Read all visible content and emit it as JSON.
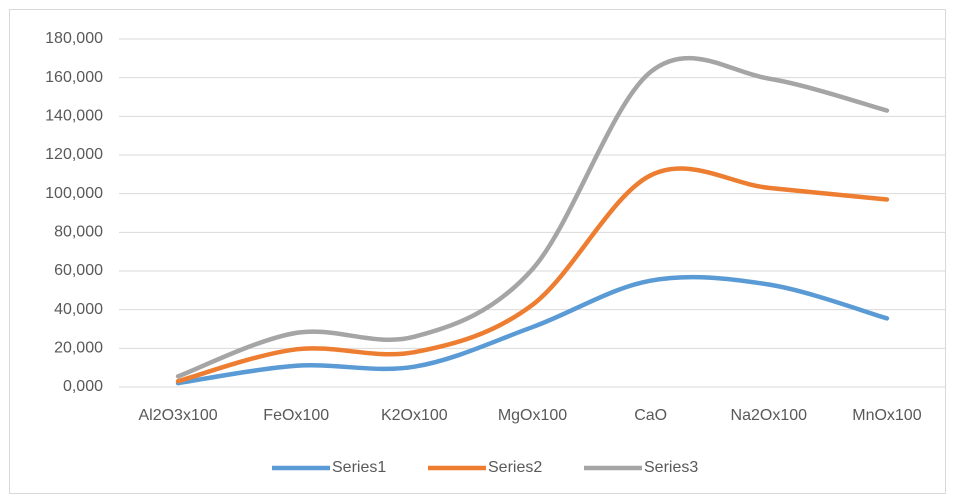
{
  "chart_data": {
    "type": "line",
    "categories": [
      "Al2O3x100",
      "FeOx100",
      "K2Ox100",
      "MgOx100",
      "CaO",
      "Na2Ox100",
      "MnOx100"
    ],
    "series": [
      {
        "name": "Series1",
        "color": "#5b9bd5",
        "values": [
          2,
          11,
          10.5,
          31,
          55,
          53,
          35.5
        ]
      },
      {
        "name": "Series2",
        "color": "#ed7d31",
        "values": [
          3,
          19.5,
          18,
          42.5,
          109.5,
          103,
          97
        ]
      },
      {
        "name": "Series3",
        "color": "#a5a5a5",
        "values": [
          5.5,
          28,
          26,
          61,
          163,
          159.5,
          143
        ]
      }
    ],
    "ylim": [
      0,
      180
    ],
    "yticks": [
      {
        "value": 0,
        "label": "0,000"
      },
      {
        "value": 20,
        "label": "20,000"
      },
      {
        "value": 40,
        "label": "40,000"
      },
      {
        "value": 60,
        "label": "60,000"
      },
      {
        "value": 80,
        "label": "80,000"
      },
      {
        "value": 100,
        "label": "100,000"
      },
      {
        "value": 120,
        "label": "120,000"
      },
      {
        "value": 140,
        "label": "140,000"
      },
      {
        "value": 160,
        "label": "160,000"
      },
      {
        "value": 180,
        "label": "180,000"
      }
    ],
    "grid": true,
    "smooth": true,
    "legend": "bottom"
  }
}
